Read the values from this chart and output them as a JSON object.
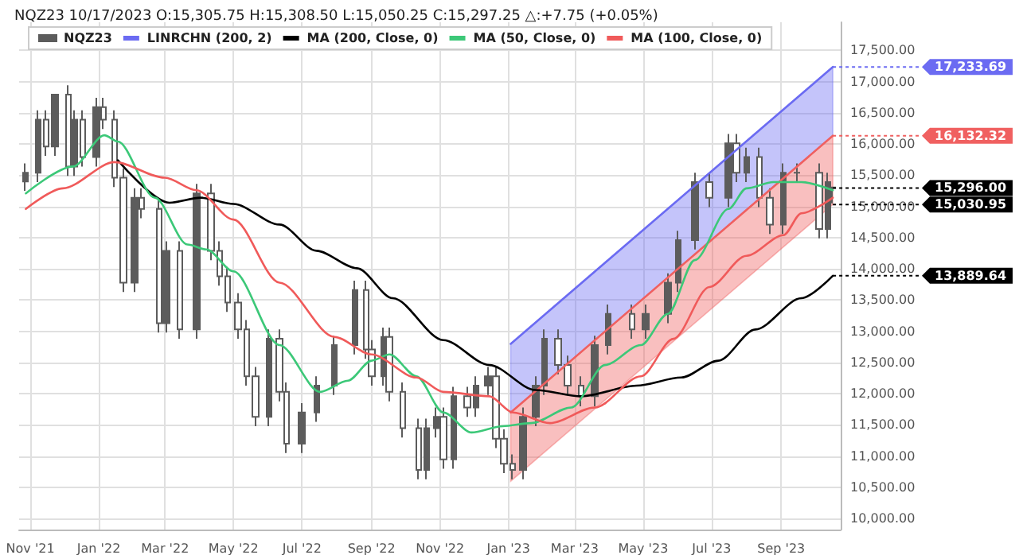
{
  "chart_data": {
    "type": "candlestick",
    "title": "NQZ23 10/17/2023 O:15,305.75 H:15,308.50 L:15,050.25 C:15,297.25 △:+7.75 (+0.05%)",
    "xlim": [
      "2021-10-22",
      "2023-10-24"
    ],
    "ylim": [
      9825,
      17950
    ],
    "xticks": [
      {
        "value": "2021-11",
        "label": "Nov '21"
      },
      {
        "value": "2022-01",
        "label": "Jan '22"
      },
      {
        "value": "2022-03",
        "label": "Mar '22"
      },
      {
        "value": "2022-05",
        "label": "May '22"
      },
      {
        "value": "2022-07",
        "label": "Jul '22"
      },
      {
        "value": "2022-09",
        "label": "Sep '22"
      },
      {
        "value": "2022-11",
        "label": "Nov '22"
      },
      {
        "value": "2023-01",
        "label": "Jan '23"
      },
      {
        "value": "2023-03",
        "label": "Mar '23"
      },
      {
        "value": "2023-05",
        "label": "May '23"
      },
      {
        "value": "2023-07",
        "label": "Jul '23"
      },
      {
        "value": "2023-09",
        "label": "Sep '23"
      }
    ],
    "yticks": [
      {
        "value": 10000,
        "label": "10,000.00"
      },
      {
        "value": 10500,
        "label": "10,500.00"
      },
      {
        "value": 11000,
        "label": "11,000.00"
      },
      {
        "value": 11500,
        "label": "11,500.00"
      },
      {
        "value": 12000,
        "label": "12,000.00"
      },
      {
        "value": 12500,
        "label": "12,500.00"
      },
      {
        "value": 13000,
        "label": "13,000.00"
      },
      {
        "value": 13500,
        "label": "13,500.00"
      },
      {
        "value": 14000,
        "label": "14,000.00"
      },
      {
        "value": 14500,
        "label": "14,500.00"
      },
      {
        "value": 15000,
        "label": "15,000.00"
      },
      {
        "value": 15500,
        "label": "15,500.00"
      },
      {
        "value": 16000,
        "label": "16,000.00"
      },
      {
        "value": 16500,
        "label": "16,500.00"
      },
      {
        "value": 17000,
        "label": "17,000.00"
      },
      {
        "value": 17500,
        "label": "17,500.00"
      }
    ],
    "grid": true,
    "legend": "top left",
    "marker": "none",
    "line_style": "solid",
    "series": [
      {
        "type": "candlestick",
        "name": "NQZ23",
        "color": "#5c5c5c",
        "x": [
          "2021-10-28",
          "2021-11-08",
          "2021-11-15",
          "2021-11-23",
          "2021-12-05",
          "2021-12-11",
          "2021-12-18",
          "2021-12-30",
          "2022-01-05",
          "2022-01-15",
          "2022-01-23",
          "2022-02-02",
          "2022-02-08",
          "2022-02-24",
          "2022-03-02",
          "2022-03-14",
          "2022-03-29",
          "2022-04-11",
          "2022-04-19",
          "2022-04-26",
          "2022-05-05",
          "2022-05-13",
          "2022-05-21",
          "2022-06-02",
          "2022-06-11",
          "2022-06-17",
          "2022-07-01",
          "2022-07-14",
          "2022-07-30",
          "2022-08-17",
          "2022-08-27",
          "2022-09-01",
          "2022-09-12",
          "2022-09-17",
          "2022-09-29",
          "2022-10-13",
          "2022-10-20",
          "2022-10-29",
          "2022-11-04",
          "2022-11-13",
          "2022-11-25",
          "2022-12-03",
          "2022-12-14",
          "2022-12-21",
          "2022-12-28",
          "2023-01-05",
          "2023-01-14",
          "2023-01-25",
          "2023-02-02",
          "2023-02-14",
          "2023-02-23",
          "2023-03-07",
          "2023-03-19",
          "2023-03-31",
          "2023-04-21",
          "2023-05-03",
          "2023-05-23",
          "2023-06-01",
          "2023-06-16",
          "2023-06-29",
          "2023-07-16",
          "2023-07-23",
          "2023-08-01",
          "2023-08-13",
          "2023-08-22",
          "2023-09-03",
          "2023-09-15",
          "2023-10-05",
          "2023-10-13",
          "2023-10-17"
        ],
        "ohlc": [
          [
            15400,
            15690,
            15250,
            15540
          ],
          [
            15540,
            16540,
            15390,
            16390
          ],
          [
            16390,
            16540,
            15810,
            15960
          ],
          [
            15960,
            16800,
            15810,
            16790
          ],
          [
            16790,
            16940,
            15490,
            15640
          ],
          [
            15640,
            16540,
            15490,
            16390
          ],
          [
            16390,
            16540,
            15640,
            15790
          ],
          [
            15790,
            16740,
            15640,
            16590
          ],
          [
            16590,
            16740,
            16240,
            16390
          ],
          [
            16390,
            16540,
            15310,
            15460
          ],
          [
            15460,
            15610,
            13630,
            13780
          ],
          [
            13780,
            15290,
            13630,
            15140
          ],
          [
            15140,
            15290,
            14810,
            14960
          ],
          [
            14960,
            15110,
            12980,
            13130
          ],
          [
            13130,
            14440,
            12980,
            14290
          ],
          [
            14290,
            14440,
            12880,
            13030
          ],
          [
            13030,
            15360,
            12880,
            15210
          ],
          [
            15210,
            15360,
            14140,
            14290
          ],
          [
            14290,
            14440,
            13730,
            13880
          ],
          [
            13880,
            14030,
            13310,
            13460
          ],
          [
            13460,
            13610,
            12880,
            13030
          ],
          [
            13030,
            13180,
            12130,
            12280
          ],
          [
            12280,
            12430,
            11480,
            11630
          ],
          [
            11630,
            13030,
            11480,
            12880
          ],
          [
            12880,
            13030,
            11880,
            12030
          ],
          [
            12030,
            12180,
            11050,
            11200
          ],
          [
            11200,
            11850,
            11050,
            11700
          ],
          [
            11700,
            12280,
            11550,
            12130
          ],
          [
            12130,
            12930,
            11980,
            12780
          ],
          [
            12780,
            13810,
            12630,
            13660
          ],
          [
            13660,
            13810,
            12560,
            12710
          ],
          [
            12710,
            12860,
            12130,
            12280
          ],
          [
            12280,
            13060,
            12130,
            12910
          ],
          [
            12910,
            13060,
            11880,
            12030
          ],
          [
            12030,
            12180,
            11300,
            11450
          ],
          [
            11450,
            11600,
            10630,
            10780
          ],
          [
            10780,
            11600,
            10630,
            11450
          ],
          [
            11450,
            11780,
            11300,
            11630
          ],
          [
            11630,
            11780,
            10800,
            10950
          ],
          [
            10950,
            12110,
            10800,
            11960
          ],
          [
            11960,
            12110,
            11630,
            11780
          ],
          [
            11780,
            12280,
            11630,
            12130
          ],
          [
            12130,
            12430,
            11980,
            12280
          ],
          [
            12280,
            12430,
            11130,
            11280
          ],
          [
            11280,
            11430,
            10730,
            10880
          ],
          [
            10880,
            11030,
            10630,
            10780
          ],
          [
            10780,
            11780,
            10630,
            11630
          ],
          [
            11630,
            12280,
            11480,
            12130
          ],
          [
            12130,
            13030,
            11980,
            12880
          ],
          [
            12880,
            13030,
            12310,
            12460
          ],
          [
            12460,
            12610,
            11980,
            12130
          ],
          [
            12130,
            12280,
            11800,
            11960
          ],
          [
            11960,
            12930,
            11800,
            12780
          ],
          [
            12780,
            13430,
            12630,
            13280
          ],
          [
            13280,
            13430,
            12880,
            13030
          ],
          [
            13030,
            13430,
            12880,
            13280
          ],
          [
            13280,
            13930,
            13130,
            13780
          ],
          [
            13780,
            14610,
            13630,
            14460
          ],
          [
            14460,
            15540,
            14310,
            15390
          ],
          [
            15390,
            15540,
            14990,
            15140
          ],
          [
            15140,
            16160,
            14990,
            16010
          ],
          [
            16010,
            16160,
            15390,
            15540
          ],
          [
            15540,
            15940,
            15390,
            15790
          ],
          [
            15790,
            15940,
            14990,
            15140
          ],
          [
            15140,
            15290,
            14560,
            14710
          ],
          [
            14710,
            15690,
            14560,
            15540
          ],
          [
            15540,
            15690,
            15390,
            15540
          ],
          [
            15540,
            15690,
            14490,
            14640
          ],
          [
            14640,
            15540,
            14490,
            15390
          ],
          [
            15305.75,
            15308.5,
            15050.25,
            15297.25
          ]
        ]
      },
      {
        "type": "line",
        "name": "LINRCHN (200, 2)",
        "color": "#6b6bf2",
        "x": [
          "2023-01-03",
          "2023-10-17"
        ],
        "values": [
          12800,
          17233.69
        ],
        "lower": [
          11700,
          16132.32
        ],
        "upper": [
          12800,
          17233.69
        ]
      },
      {
        "type": "line",
        "color": "#f06060",
        "x": [
          "2023-01-03",
          "2023-10-17"
        ],
        "values": [
          11700,
          16132.32
        ],
        "lower": [
          10600,
          15030.95
        ],
        "upper": [
          11700,
          16132.32
        ]
      },
      {
        "type": "line",
        "name": "MA (200, Close, 0)",
        "color": "#000000",
        "x": [
          "2022-01-18",
          "2022-03-05",
          "2022-04-02",
          "2022-05-01",
          "2022-06-11",
          "2022-07-14",
          "2022-08-19",
          "2022-09-20",
          "2022-11-04",
          "2022-12-15",
          "2023-01-25",
          "2023-03-07",
          "2023-04-25",
          "2023-06-04",
          "2023-07-07",
          "2023-08-09",
          "2023-09-19",
          "2023-10-17"
        ],
        "values": [
          15740,
          15060,
          15140,
          15040,
          14710,
          14290,
          14010,
          13530,
          12860,
          12460,
          12060,
          11960,
          12130,
          12260,
          12530,
          13030,
          13530,
          13889.64
        ]
      },
      {
        "type": "line",
        "name": "MA (50, Close, 0)",
        "color": "#3cc878",
        "x": [
          "2021-10-28",
          "2021-12-09",
          "2022-01-06",
          "2022-01-18",
          "2022-02-20",
          "2022-03-21",
          "2022-04-07",
          "2022-05-01",
          "2022-06-11",
          "2022-07-17",
          "2022-08-11",
          "2022-09-01",
          "2022-09-17",
          "2022-10-11",
          "2022-11-04",
          "2022-11-29",
          "2022-12-27",
          "2023-01-21",
          "2023-02-26",
          "2023-03-28",
          "2023-04-29",
          "2023-05-23",
          "2023-06-16",
          "2023-07-16",
          "2023-08-01",
          "2023-08-25",
          "2023-09-19",
          "2023-10-17"
        ],
        "values": [
          15210,
          15640,
          16140,
          16040,
          15140,
          14390,
          14310,
          13960,
          12780,
          12030,
          12210,
          12530,
          12630,
          12280,
          11700,
          11380,
          11480,
          11530,
          11780,
          12460,
          12780,
          13280,
          14140,
          14960,
          15290,
          15390,
          15390,
          15260
        ]
      },
      {
        "type": "line",
        "name": "MA (100, Close, 0)",
        "color": "#f05a5a",
        "x": [
          "2021-10-28",
          "2021-11-30",
          "2022-01-15",
          "2022-03-01",
          "2022-03-29",
          "2022-05-01",
          "2022-06-11",
          "2022-07-30",
          "2022-09-01",
          "2022-10-11",
          "2022-11-04",
          "2022-12-15",
          "2023-01-05",
          "2023-02-07",
          "2023-03-19",
          "2023-04-29",
          "2023-05-28",
          "2023-06-29",
          "2023-08-01",
          "2023-09-03",
          "2023-09-19",
          "2023-10-17"
        ],
        "values": [
          14960,
          15290,
          15710,
          15460,
          15260,
          14790,
          13780,
          12910,
          12630,
          12260,
          12030,
          11960,
          11700,
          11530,
          11780,
          12280,
          12880,
          13710,
          14210,
          14540,
          14890,
          15140
        ]
      }
    ],
    "annotations": [
      {
        "text": "17,233.69",
        "x": "2023-10-17",
        "y": 17233.69
      },
      {
        "text": "16,132.32",
        "x": "2023-10-17",
        "y": 16132.32
      },
      {
        "text": "15,296.00",
        "x": "2023-10-17",
        "y": 15296
      },
      {
        "text": "15,030.95",
        "x": "2023-10-17",
        "y": 15030.95
      },
      {
        "text": "13,889.64",
        "x": "2023-10-17",
        "y": 13889.64
      }
    ]
  }
}
